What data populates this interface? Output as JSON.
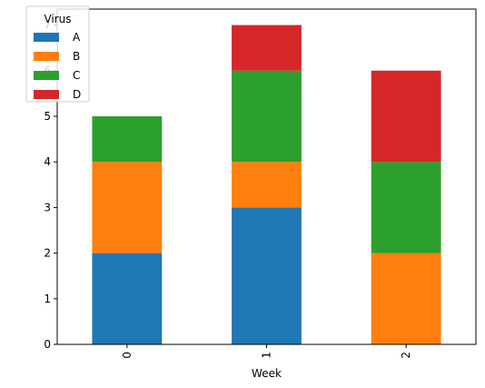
{
  "chart_data": {
    "type": "bar",
    "stacked": true,
    "categories": [
      "0",
      "1",
      "2"
    ],
    "series": [
      {
        "name": "A",
        "values": [
          2,
          3,
          0
        ],
        "color": "#1f77b4"
      },
      {
        "name": "B",
        "values": [
          2,
          1,
          2
        ],
        "color": "#ff7f0e"
      },
      {
        "name": "C",
        "values": [
          1,
          2,
          2
        ],
        "color": "#2ca02c"
      },
      {
        "name": "D",
        "values": [
          0,
          1,
          2
        ],
        "color": "#d62728"
      }
    ],
    "xlabel": "Week",
    "ylabel": "",
    "ylim": [
      0,
      7.35
    ],
    "yticks": [
      0,
      1,
      2,
      3,
      4,
      5,
      6,
      7
    ],
    "legend": {
      "title": "Virus",
      "placement": "top-left"
    },
    "grid": false
  }
}
